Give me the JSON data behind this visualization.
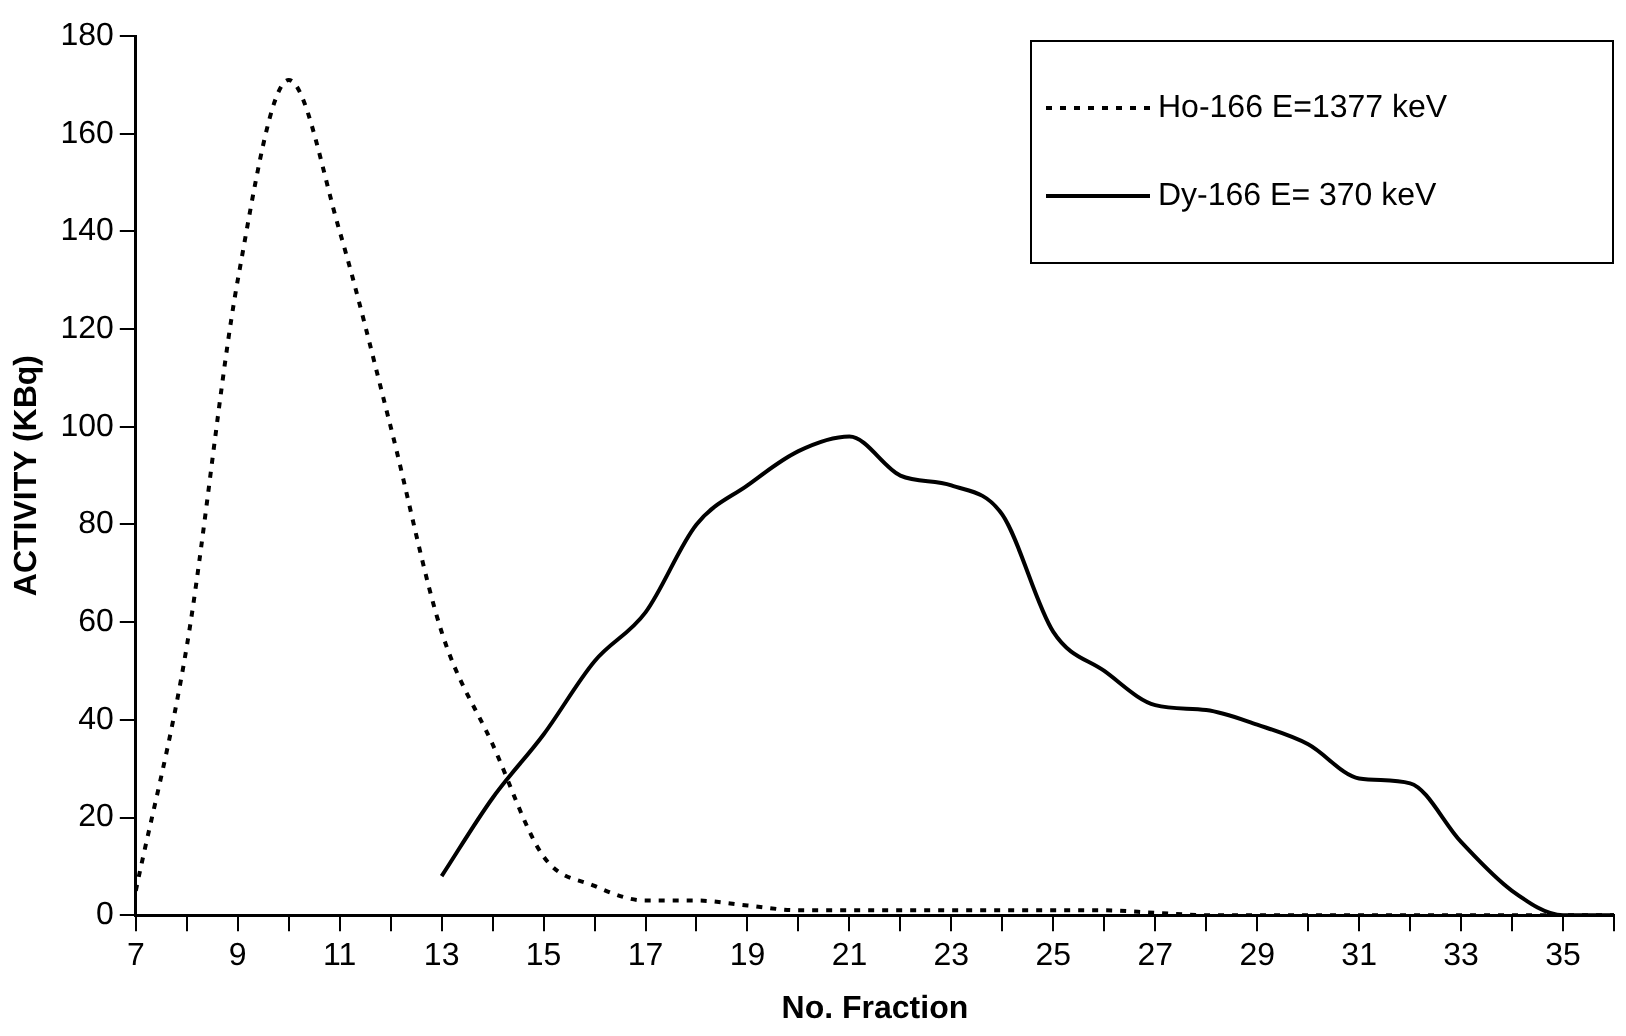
{
  "chart_data": {
    "type": "line",
    "xlabel": "No. Fraction",
    "ylabel": "ACTIVITY (KBq)",
    "x": [
      7,
      8,
      9,
      10,
      11,
      12,
      13,
      14,
      15,
      16,
      17,
      18,
      19,
      20,
      21,
      22,
      23,
      24,
      25,
      26,
      27,
      28,
      29,
      30,
      31,
      32,
      33,
      34,
      35,
      36
    ],
    "series": [
      {
        "name": "Ho-166 E=1377 keV",
        "color": "#000000",
        "line_style": "dotted",
        "values": [
          5,
          55,
          130,
          171,
          140,
          100,
          58,
          35,
          12,
          6,
          3,
          3,
          2,
          1,
          1,
          1,
          1,
          1,
          1,
          1,
          0.5,
          0,
          0,
          0,
          0,
          0,
          0,
          0,
          0,
          0
        ]
      },
      {
        "name": "Dy-166 E= 370 keV",
        "color": "#000000",
        "line_style": "solid",
        "values": [
          null,
          null,
          null,
          null,
          null,
          null,
          8,
          24,
          37,
          52,
          62,
          80,
          88,
          95,
          98,
          90,
          88,
          82,
          58,
          50,
          43,
          42,
          39,
          35,
          28,
          27,
          15,
          5,
          0,
          0
        ]
      }
    ],
    "xlim": [
      7,
      36
    ],
    "xticks": [
      7,
      {
        "value": 8,
        "label": null
      },
      9,
      {
        "value": 10,
        "label": null
      },
      11,
      {
        "value": 12,
        "label": null
      },
      13,
      {
        "value": 14,
        "label": null
      },
      15,
      {
        "value": 16,
        "label": null
      },
      17,
      {
        "value": 18,
        "label": null
      },
      19,
      {
        "value": 20,
        "label": null
      },
      21,
      {
        "value": 22,
        "label": null
      },
      23,
      {
        "value": 24,
        "label": null
      },
      25,
      {
        "value": 26,
        "label": null
      },
      27,
      {
        "value": 28,
        "label": null
      },
      29,
      {
        "value": 30,
        "label": null
      },
      31,
      {
        "value": 32,
        "label": null
      },
      33,
      {
        "value": 34,
        "label": null
      },
      35,
      {
        "value": 36,
        "label": null
      }
    ],
    "ylim": [
      0,
      180
    ],
    "yticks": [
      0,
      20,
      40,
      60,
      80,
      100,
      120,
      140,
      160,
      180
    ],
    "grid": false,
    "legend": "top right",
    "marker": "none"
  }
}
